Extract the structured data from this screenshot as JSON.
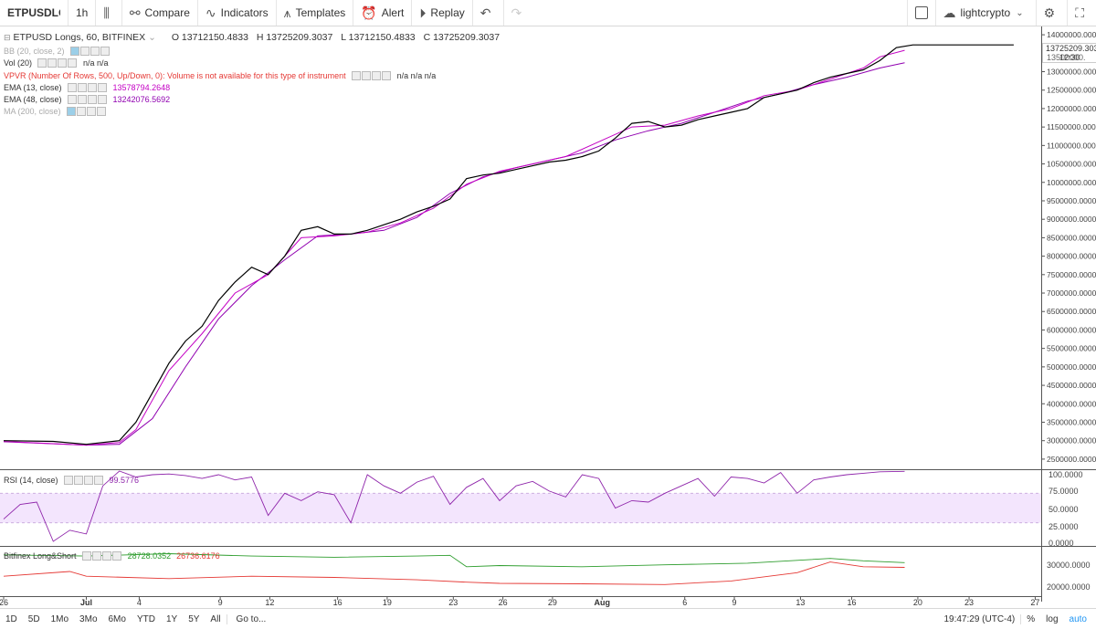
{
  "toolbar": {
    "symbol": "ETPUSDLON",
    "interval": "1h",
    "compare": "Compare",
    "indicators": "Indicators",
    "templates": "Templates",
    "alert": "Alert",
    "replay": "Replay",
    "user": "lightcrypto"
  },
  "legend": {
    "title": "ETPUSD Longs, 60, BITFINEX",
    "open": "O 13712150.4833",
    "high": "H 13725209.3037",
    "low": "L 13712150.4833",
    "close": "C 13725209.3037",
    "bb": "BB (20, close, 2)",
    "vol": "Vol (20)",
    "vol_values": "n/a  n/a",
    "vpvr": "VPVR (Number Of Rows, 500, Up/Down, 0): Volume is not available for this type of instrument",
    "vpvr_values": "n/a  n/a  n/a",
    "ema13": "EMA (13, close)",
    "ema13_value": "13578794.2648",
    "ema48": "EMA (48, close)",
    "ema48_value": "13242076.5692",
    "ma200": "MA (200, close)",
    "rsi": "RSI (14, close)",
    "rsi_value": "99.5776",
    "ls": "Bitfinex Long&Short",
    "ls_long": "28728.0352",
    "ls_short": "26736.6176"
  },
  "axis": {
    "last_price": "13725209.3037",
    "countdown": "12:30",
    "last_price_short": "13500000.",
    "rsi_ticks": [
      "100.0000",
      "75.0000",
      "50.0000",
      "25.0000",
      "0.0000"
    ],
    "ls_ticks": [
      "30000.0000",
      "20000.0000"
    ]
  },
  "bottombar": {
    "ranges": [
      "1D",
      "5D",
      "1Mo",
      "3Mo",
      "6Mo",
      "YTD",
      "1Y",
      "5Y",
      "All"
    ],
    "goto": "Go to...",
    "time": "19:47:29 (UTC-4)",
    "percent": "%",
    "log": "log",
    "auto": "auto"
  },
  "colors": {
    "price": "#000000",
    "ema13": "#c400c4",
    "ema48": "#9000b0",
    "rsi": "#8e24aa",
    "rsi_band": "#f3e5fd",
    "long": "#2e9d2e",
    "short": "#e53935"
  },
  "chart_data": [
    {
      "type": "line",
      "title": "ETPUSD Longs, 60, BITFINEX",
      "x_ticks": [
        "26",
        "Jul",
        "4",
        "9",
        "12",
        "16",
        "19",
        "23",
        "26",
        "29",
        "Aug",
        "6",
        "9",
        "13",
        "16",
        "20",
        "23",
        "27"
      ],
      "y_ticks": [
        2500000,
        3000000,
        3500000,
        4000000,
        4500000,
        5000000,
        5500000,
        6000000,
        6500000,
        7000000,
        7500000,
        8000000,
        8500000,
        9000000,
        9500000,
        10000000,
        10500000,
        11000000,
        11500000,
        12000000,
        12500000,
        13000000,
        14000000
      ],
      "ylim": [
        2300000,
        14200000
      ],
      "x_day_range": [
        0,
        62
      ],
      "series": [
        {
          "name": "ETPUSD Longs",
          "x": [
            0,
            3,
            5,
            7,
            8,
            9,
            10,
            11,
            12,
            13,
            14,
            15,
            16,
            17,
            18,
            19,
            20,
            21,
            22,
            23,
            24,
            25,
            26,
            27,
            28,
            29,
            30,
            31,
            32,
            33,
            34,
            35,
            36,
            37,
            38,
            39,
            40,
            41,
            42,
            43,
            44,
            45,
            46,
            47,
            48,
            49,
            50,
            51,
            52,
            53,
            54,
            55,
            56,
            57,
            58,
            59,
            60,
            61.1
          ],
          "y": [
            3000000,
            2980000,
            2900000,
            3000000,
            3500000,
            4300000,
            5100000,
            5700000,
            6100000,
            6800000,
            7300000,
            7700000,
            7500000,
            8000000,
            8700000,
            8800000,
            8600000,
            8600000,
            8700000,
            8850000,
            9000000,
            9200000,
            9350000,
            9550000,
            10100000,
            10200000,
            10250000,
            10350000,
            10450000,
            10550000,
            10600000,
            10700000,
            10850000,
            11200000,
            11600000,
            11650000,
            11500000,
            11550000,
            11700000,
            11800000,
            11900000,
            12000000,
            12300000,
            12400000,
            12500000,
            12700000,
            12850000,
            12950000,
            13050000,
            13300000,
            13650000,
            13725000,
            13725000,
            13725000,
            13725000,
            13725000,
            13725000,
            13725209
          ]
        },
        {
          "name": "EMA (13, close)",
          "x": [
            0,
            5,
            7,
            8,
            10,
            12,
            14,
            16,
            18,
            20,
            22,
            24,
            26,
            28,
            30,
            32,
            34,
            36,
            38,
            40,
            42,
            44,
            46,
            48,
            50,
            52,
            53,
            54.5
          ],
          "y": [
            2980000,
            2880000,
            2950000,
            3300000,
            4900000,
            5900000,
            7000000,
            7500000,
            8500000,
            8550000,
            8650000,
            8900000,
            9300000,
            9950000,
            10300000,
            10500000,
            10700000,
            11100000,
            11500000,
            11550000,
            11800000,
            12000000,
            12350000,
            12500000,
            12800000,
            13100000,
            13400000,
            13578794
          ]
        },
        {
          "name": "EMA (48, close)",
          "x": [
            0,
            5,
            7,
            9,
            11,
            13,
            15,
            17,
            19,
            21,
            23,
            25,
            27,
            29,
            31,
            33,
            35,
            37,
            39,
            41,
            43,
            45,
            47,
            49,
            51,
            53,
            54.5
          ],
          "y": [
            2970000,
            2880000,
            2900000,
            3600000,
            5000000,
            6300000,
            7200000,
            7900000,
            8550000,
            8600000,
            8700000,
            9050000,
            9700000,
            10150000,
            10400000,
            10600000,
            10800000,
            11150000,
            11400000,
            11600000,
            11900000,
            12200000,
            12400000,
            12650000,
            12850000,
            13100000,
            13242076
          ]
        }
      ]
    },
    {
      "type": "line",
      "title": "RSI (14, close)",
      "ylim": [
        0,
        100
      ],
      "band": [
        30,
        70
      ],
      "series": [
        {
          "name": "RSI (14, close)",
          "x": [
            0,
            1,
            2,
            3,
            4,
            5,
            6,
            7,
            8,
            9,
            10,
            11,
            12,
            13,
            14,
            15,
            16,
            17,
            18,
            19,
            20,
            21,
            22,
            23,
            24,
            25,
            26,
            27,
            28,
            29,
            30,
            31,
            32,
            33,
            34,
            35,
            36,
            37,
            38,
            39,
            40,
            41,
            42,
            43,
            44,
            45,
            46,
            47,
            48,
            49,
            50,
            51,
            52,
            53,
            54.5
          ],
          "y": [
            35,
            55,
            58,
            5,
            20,
            15,
            80,
            100,
            92,
            95,
            96,
            94,
            90,
            95,
            88,
            92,
            40,
            70,
            60,
            72,
            68,
            30,
            95,
            80,
            70,
            85,
            93,
            55,
            78,
            90,
            60,
            80,
            86,
            73,
            65,
            95,
            90,
            50,
            60,
            58,
            70,
            80,
            90,
            66,
            92,
            90,
            84,
            98,
            70,
            88,
            92,
            95,
            97,
            99,
            99.58
          ]
        }
      ]
    },
    {
      "type": "line",
      "title": "Bitfinex Long&Short",
      "ylim": [
        15000,
        35000
      ],
      "series": [
        {
          "name": "Long",
          "x": [
            0,
            5,
            10,
            15,
            20,
            25,
            27,
            28,
            30,
            35,
            40,
            45,
            50,
            52,
            54.5
          ],
          "y": [
            32000,
            31500,
            32500,
            31500,
            31000,
            31500,
            31800,
            27000,
            27500,
            27000,
            27800,
            28500,
            30500,
            29500,
            28728
          ]
        },
        {
          "name": "Short",
          "x": [
            0,
            4,
            5,
            10,
            15,
            20,
            25,
            28,
            30,
            35,
            40,
            44,
            48,
            50,
            52,
            54.5
          ],
          "y": [
            23000,
            25000,
            23000,
            22000,
            23000,
            22500,
            21500,
            20500,
            20000,
            19800,
            19500,
            21000,
            24500,
            29000,
            27000,
            26736
          ]
        }
      ]
    }
  ]
}
